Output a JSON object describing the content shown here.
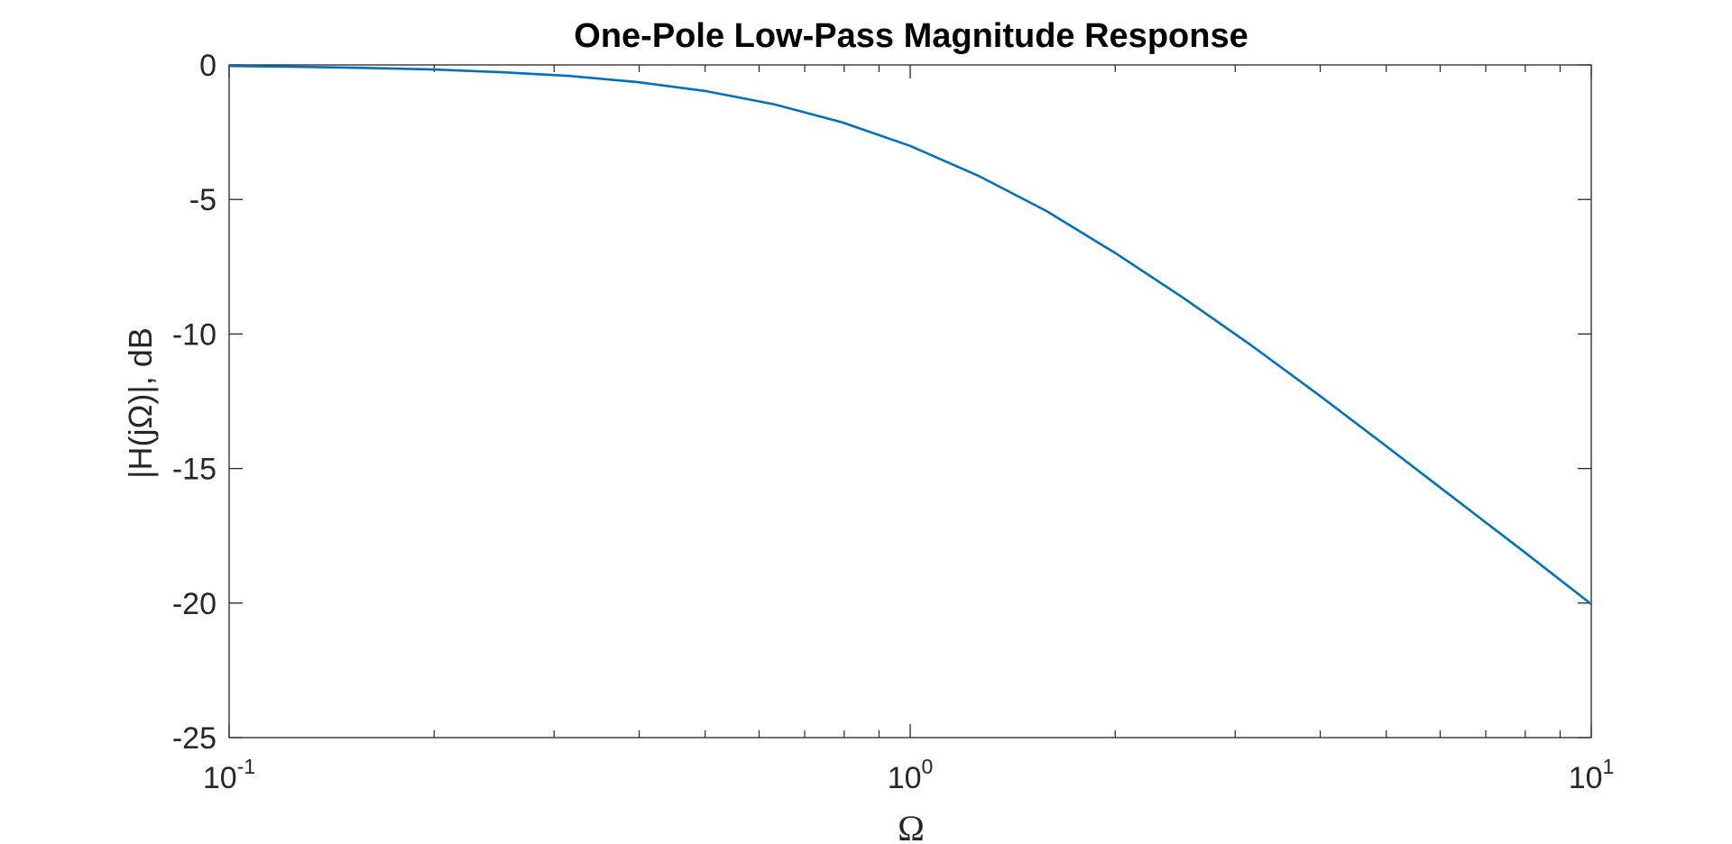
{
  "chart_data": {
    "type": "line",
    "title": "One-Pole Low-Pass Magnitude Response",
    "xlabel": "Ω",
    "ylabel": "|H(jΩ)|, dB",
    "xscale": "log",
    "xlim": [
      0.1,
      10
    ],
    "ylim": [
      -25,
      0
    ],
    "yticks": [
      0,
      -5,
      -10,
      -15,
      -20,
      -25
    ],
    "ytick_labels": [
      "0",
      "-5",
      "-10",
      "-15",
      "-20",
      "-25"
    ],
    "xticks": [
      {
        "value": 0.1,
        "base": "10",
        "exp": "-1"
      },
      {
        "value": 1,
        "base": "10",
        "exp": "0"
      },
      {
        "value": 10,
        "base": "10",
        "exp": "1"
      }
    ],
    "grid": false,
    "series": [
      {
        "color": "#0072BD",
        "x": [
          0.1,
          0.126,
          0.158,
          0.2,
          0.251,
          0.316,
          0.398,
          0.5,
          0.631,
          0.794,
          1,
          1.259,
          1.585,
          2,
          2.512,
          3.162,
          3.981,
          5.012,
          6.31,
          7.943,
          10
        ],
        "y": [
          -0.04,
          -0.07,
          -0.11,
          -0.17,
          -0.27,
          -0.41,
          -0.64,
          -0.97,
          -1.46,
          -2.13,
          -3.01,
          -4.12,
          -5.43,
          -6.99,
          -8.64,
          -10.41,
          -12.27,
          -14.19,
          -16.13,
          -18.07,
          -20.04
        ]
      }
    ]
  }
}
